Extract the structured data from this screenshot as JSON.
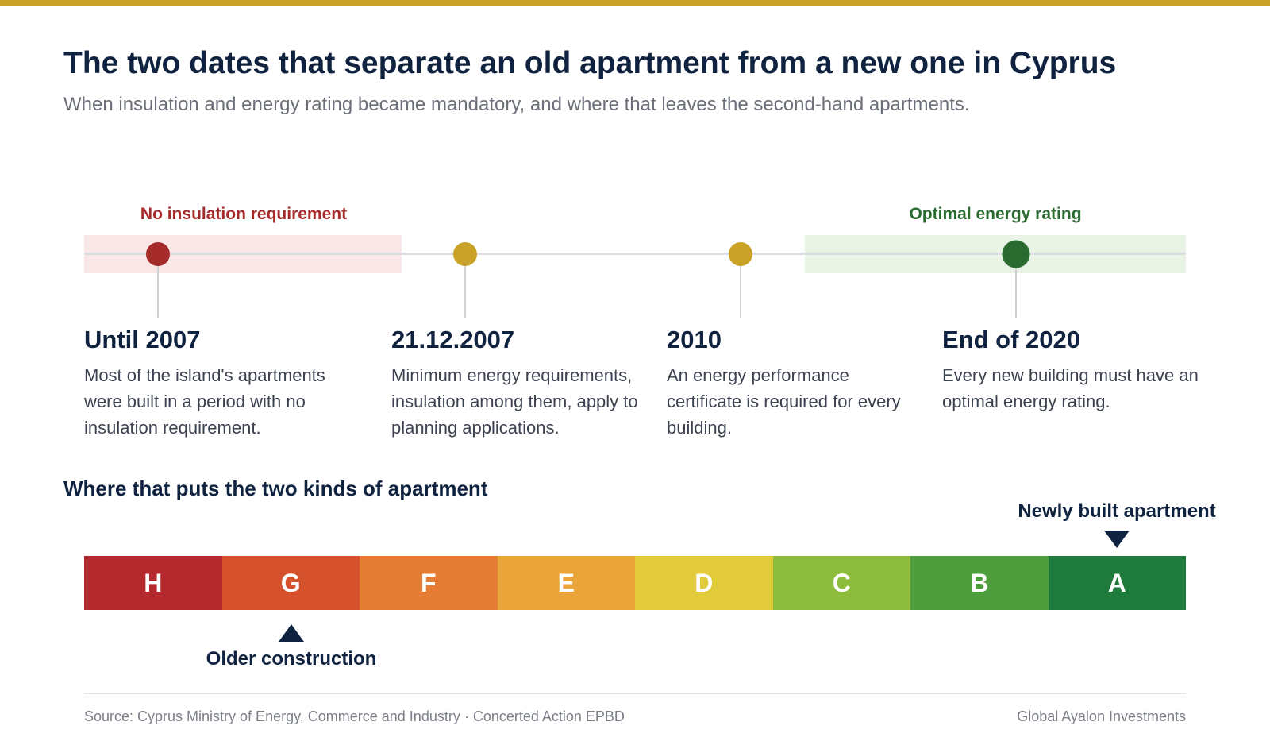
{
  "colors": {
    "accent_bar": "#c9a227",
    "no_insulation": "#a52a2a",
    "no_insulation_band": "#f9e6e6",
    "optimal": "#2a6b2f",
    "optimal_band": "#e8f3e6",
    "neutral_milestone": "#c9a227",
    "text_dark": "#0f2340"
  },
  "header": {
    "title": "The two dates that separate an old apartment from a new one in Cyprus",
    "subtitle": "When insulation and energy rating became mandatory, and where that leaves the second-hand apartments."
  },
  "timeline": {
    "bands": [
      {
        "label": "No insulation requirement",
        "color": "#a52a2a",
        "fill": "#f9e6e6"
      },
      {
        "label": "Optimal energy rating",
        "color": "#2a6b2f",
        "fill": "#e8f3e6"
      }
    ],
    "events": [
      {
        "date": "Until 2007",
        "description": "Most of the island's apartments were built in a period with no insulation requirement.",
        "dot_color": "#a52a2a"
      },
      {
        "date": "21.12.2007",
        "description": "Minimum energy requirements, insulation among them, apply to planning applications.",
        "dot_color": "#c9a227"
      },
      {
        "date": "2010",
        "description": "An energy performance certificate is required for every building.",
        "dot_color": "#c9a227"
      },
      {
        "date": "End of 2020",
        "description": "Every new building must have an optimal energy rating.",
        "dot_color": "#2a6b2f"
      }
    ]
  },
  "scale": {
    "heading": "Where that puts the two kinds of apartment",
    "grades": [
      {
        "letter": "H",
        "color": "#b3292e"
      },
      {
        "letter": "G",
        "color": "#d4512c"
      },
      {
        "letter": "F",
        "color": "#e57c34"
      },
      {
        "letter": "E",
        "color": "#e9a43a"
      },
      {
        "letter": "D",
        "color": "#e2cb3b"
      },
      {
        "letter": "C",
        "color": "#8dbc3d"
      },
      {
        "letter": "B",
        "color": "#4f9e3e"
      },
      {
        "letter": "A",
        "color": "#1e7b3c"
      }
    ],
    "markers": {
      "new": {
        "label": "Newly built apartment",
        "grade": "A"
      },
      "old": {
        "label": "Older construction",
        "grade": "G"
      }
    }
  },
  "footer": {
    "source": "Source: Cyprus Ministry of Energy, Commerce and Industry · Concerted Action EPBD",
    "credit": "Global Ayalon Investments"
  }
}
